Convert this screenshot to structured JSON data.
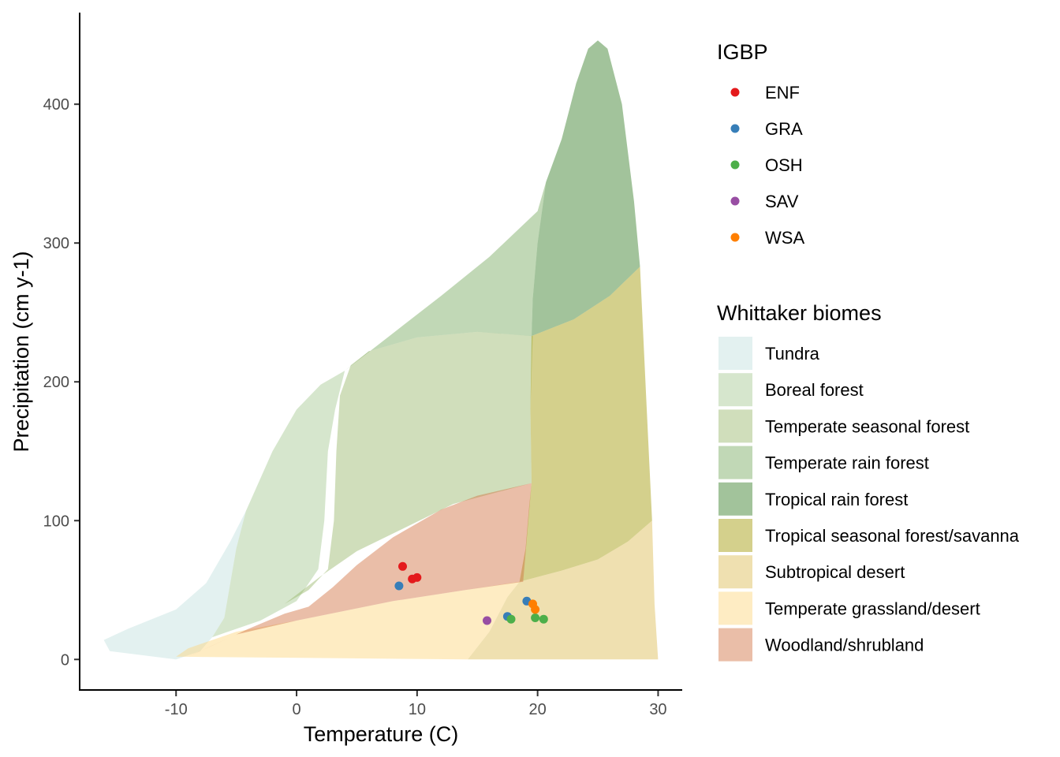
{
  "chart_data": {
    "type": "scatter",
    "title": "",
    "xlabel": "Temperature (C)",
    "ylabel": "Precipitation (cm y-1)",
    "xlim": [
      -18,
      32
    ],
    "ylim": [
      -22,
      466
    ],
    "x_ticks": [
      -10,
      0,
      10,
      20,
      30
    ],
    "y_ticks": [
      0,
      100,
      200,
      300,
      400
    ],
    "x_tick_labels": [
      "-10",
      "0",
      "10",
      "20",
      "30"
    ],
    "y_tick_labels": [
      "0",
      "100",
      "200",
      "300",
      "400"
    ],
    "grid": false,
    "legend_position": "right",
    "points_legend": {
      "title": "IGBP",
      "entries": [
        {
          "label": "ENF",
          "color": "#e41a1c"
        },
        {
          "label": "GRA",
          "color": "#377eb8"
        },
        {
          "label": "OSH",
          "color": "#4daf4a"
        },
        {
          "label": "SAV",
          "color": "#984ea3"
        },
        {
          "label": "WSA",
          "color": "#ff7f00"
        }
      ]
    },
    "biomes_legend": {
      "title": "Whittaker biomes",
      "entries": [
        {
          "label": "Tundra",
          "color": "#C1E1DD"
        },
        {
          "label": "Boreal forest",
          "color": "#A5C790"
        },
        {
          "label": "Temperate seasonal forest",
          "color": "#97B669"
        },
        {
          "label": "Temperate rain forest",
          "color": "#75A95E"
        },
        {
          "label": "Tropical rain forest",
          "color": "#317A22"
        },
        {
          "label": "Tropical seasonal forest/savanna",
          "color": "#A09700"
        },
        {
          "label": "Subtropical desert",
          "color": "#DCBB50"
        },
        {
          "label": "Temperate grassland/desert",
          "color": "#FCD57A"
        },
        {
          "label": "Woodland/shrubland",
          "color": "#D16E3F"
        }
      ]
    },
    "series": [
      {
        "name": "ENF",
        "points": [
          [
            8.8,
            67
          ],
          [
            9.6,
            58
          ],
          [
            10.0,
            59
          ]
        ]
      },
      {
        "name": "GRA",
        "points": [
          [
            8.5,
            53
          ],
          [
            17.5,
            31
          ],
          [
            19.1,
            42
          ]
        ]
      },
      {
        "name": "OSH",
        "points": [
          [
            17.8,
            29
          ],
          [
            19.8,
            30
          ],
          [
            20.5,
            29
          ]
        ]
      },
      {
        "name": "SAV",
        "points": [
          [
            15.8,
            28
          ]
        ]
      },
      {
        "name": "WSA",
        "points": [
          [
            19.6,
            40
          ],
          [
            19.8,
            36
          ]
        ]
      }
    ],
    "biome_regions": [
      {
        "name": "Tundra",
        "color": "#C1E1DD",
        "polygon": [
          [
            -10,
            0
          ],
          [
            -15.5,
            6
          ],
          [
            -16,
            14
          ],
          [
            -14,
            22
          ],
          [
            -10,
            36
          ],
          [
            -7.5,
            55
          ],
          [
            -5.5,
            85
          ],
          [
            -4.2,
            107
          ],
          [
            -5,
            80
          ],
          [
            -6,
            30
          ],
          [
            -7,
            16
          ],
          [
            -8,
            6
          ]
        ]
      },
      {
        "name": "Boreal forest",
        "color": "#A5C790",
        "polygon": [
          [
            -7,
            16
          ],
          [
            -6,
            30
          ],
          [
            -5,
            80
          ],
          [
            -4.2,
            107
          ],
          [
            -2,
            150
          ],
          [
            0,
            180
          ],
          [
            2,
            198
          ],
          [
            4,
            208
          ],
          [
            3.2,
            180
          ],
          [
            2.6,
            150
          ],
          [
            2.3,
            100
          ],
          [
            1.8,
            65
          ],
          [
            0,
            42
          ],
          [
            -3,
            28
          ],
          [
            -6,
            19
          ]
        ]
      },
      {
        "name": "Temperate seasonal forest",
        "color": "#97B669",
        "polygon": [
          [
            -1,
            40
          ],
          [
            2,
            60
          ],
          [
            5,
            78
          ],
          [
            9,
            95
          ],
          [
            13,
            112
          ],
          [
            19.5,
            127
          ],
          [
            19.4,
            180
          ],
          [
            19.6,
            233
          ],
          [
            15,
            236
          ],
          [
            10,
            232
          ],
          [
            6,
            222
          ],
          [
            4.5,
            212
          ],
          [
            3.6,
            190
          ],
          [
            3.3,
            150
          ],
          [
            3.1,
            100
          ],
          [
            2.6,
            65
          ],
          [
            1,
            50
          ]
        ]
      },
      {
        "name": "Temperate rain forest",
        "color": "#75A95E",
        "polygon": [
          [
            4,
            208
          ],
          [
            8,
            235
          ],
          [
            12,
            262
          ],
          [
            16,
            290
          ],
          [
            20,
            323
          ],
          [
            20.7,
            344
          ],
          [
            20,
            300
          ],
          [
            19.6,
            260
          ],
          [
            19.5,
            233
          ],
          [
            15,
            236
          ],
          [
            10,
            232
          ],
          [
            6,
            222
          ]
        ]
      },
      {
        "name": "Tropical rain forest",
        "color": "#317A22",
        "polygon": [
          [
            19.5,
            233
          ],
          [
            19.6,
            260
          ],
          [
            20,
            300
          ],
          [
            20.7,
            344
          ],
          [
            22,
            375
          ],
          [
            23.2,
            415
          ],
          [
            24.2,
            440
          ],
          [
            25,
            446
          ],
          [
            25.8,
            440
          ],
          [
            27,
            400
          ],
          [
            28,
            330
          ],
          [
            28.5,
            283
          ],
          [
            26,
            262
          ],
          [
            23,
            245
          ]
        ]
      },
      {
        "name": "Tropical seasonal forest/savanna",
        "color": "#A09700",
        "polygon": [
          [
            19.5,
            233
          ],
          [
            23,
            245
          ],
          [
            26,
            262
          ],
          [
            28.5,
            283
          ],
          [
            29,
            190
          ],
          [
            29.5,
            100
          ],
          [
            27.5,
            85
          ],
          [
            25,
            72
          ],
          [
            22,
            64
          ],
          [
            18.5,
            56
          ],
          [
            19,
            80
          ],
          [
            19.3,
            110
          ],
          [
            19.5,
            127
          ],
          [
            19.4,
            180
          ]
        ]
      },
      {
        "name": "Subtropical desert",
        "color": "#DCBB50",
        "polygon": [
          [
            14.2,
            0
          ],
          [
            30,
            0
          ],
          [
            29.7,
            40
          ],
          [
            29.5,
            100
          ],
          [
            27.5,
            85
          ],
          [
            25,
            72
          ],
          [
            22,
            64
          ],
          [
            18.5,
            56
          ],
          [
            17.5,
            45
          ],
          [
            16,
            20
          ]
        ]
      },
      {
        "name": "Temperate grassland/desert",
        "color": "#FCD57A",
        "polygon": [
          [
            -10,
            2
          ],
          [
            14.2,
            0
          ],
          [
            16,
            20
          ],
          [
            17.5,
            45
          ],
          [
            18.5,
            56
          ],
          [
            14,
            50
          ],
          [
            8,
            42
          ],
          [
            0,
            28
          ],
          [
            -5,
            20
          ],
          [
            -9,
            8
          ]
        ]
      },
      {
        "name": "Woodland/shrubland",
        "color": "#D16E3F",
        "polygon": [
          [
            -9,
            2
          ],
          [
            -7,
            10
          ],
          [
            -4,
            22
          ],
          [
            -1,
            33
          ],
          [
            1,
            38
          ],
          [
            3,
            52
          ],
          [
            5,
            68
          ],
          [
            8,
            88
          ],
          [
            12,
            108
          ],
          [
            15,
            118
          ],
          [
            19.5,
            127
          ],
          [
            18.8,
            56
          ],
          [
            14,
            50
          ],
          [
            8,
            42
          ],
          [
            0,
            28
          ],
          [
            -5,
            18
          ]
        ]
      }
    ]
  }
}
